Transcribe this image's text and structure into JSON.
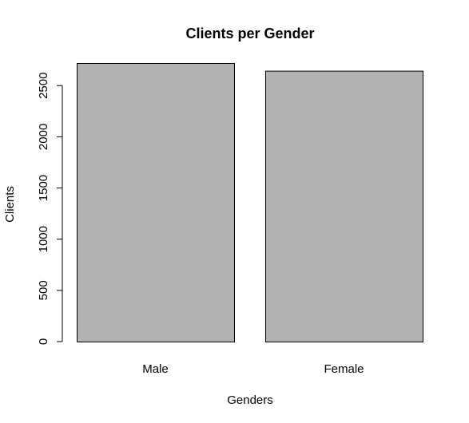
{
  "chart_data": {
    "type": "bar",
    "title": "Clients per Gender",
    "xlabel": "Genders",
    "ylabel": "Clients",
    "categories": [
      "Male",
      "Female"
    ],
    "values": [
      2720,
      2645
    ],
    "ylim": [
      0,
      2720
    ],
    "yticks": [
      0,
      500,
      1000,
      1500,
      2000,
      2500
    ],
    "grid": false,
    "legend": "none",
    "bar_color": "#b2b2b2",
    "outline_color": "#000000"
  }
}
